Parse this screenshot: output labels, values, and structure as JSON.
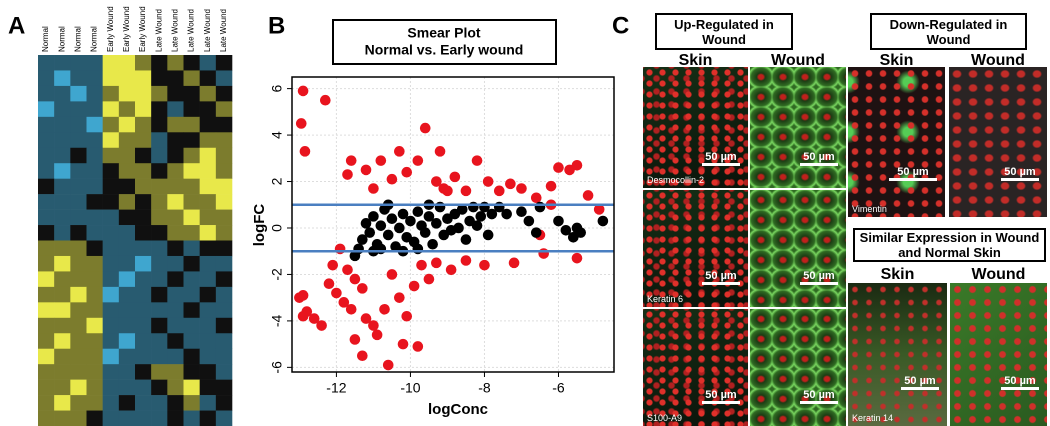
{
  "panel_labels": [
    "A",
    "B",
    "C"
  ],
  "chart_data": [
    {
      "type": "heatmap",
      "columns": [
        "Normal",
        "Normal",
        "Normal",
        "Normal",
        "Early Wound",
        "Early Wound",
        "Early Wound",
        "Late Wound",
        "Late Wound",
        "Late Wound",
        "Late Wound",
        "Late Wound"
      ],
      "colorlim": [
        -2,
        2
      ],
      "colors": [
        "#3fa6cf",
        "#101010",
        "#e8e84a"
      ],
      "matrix": [
        [
          -1,
          -1,
          -1,
          -1,
          2,
          2,
          1,
          0,
          1,
          0,
          -1,
          0
        ],
        [
          -1,
          -2,
          -1,
          -1,
          2,
          2,
          2,
          0,
          0,
          1,
          0,
          -1
        ],
        [
          -1,
          -1,
          -2,
          -1,
          1,
          2,
          2,
          1,
          0,
          0,
          1,
          0
        ],
        [
          -2,
          -1,
          -1,
          -1,
          2,
          1,
          2,
          0,
          -1,
          0,
          0,
          1
        ],
        [
          -1,
          -1,
          -1,
          -2,
          1,
          2,
          1,
          0,
          1,
          1,
          0,
          0
        ],
        [
          -1,
          -1,
          -1,
          -1,
          2,
          1,
          1,
          -1,
          0,
          0,
          1,
          1
        ],
        [
          -1,
          -1,
          0,
          -1,
          1,
          1,
          0,
          -1,
          0,
          1,
          2,
          1
        ],
        [
          -1,
          -2,
          -1,
          -1,
          0,
          1,
          1,
          0,
          1,
          2,
          2,
          1
        ],
        [
          0,
          -1,
          -1,
          -1,
          0,
          0,
          1,
          1,
          1,
          1,
          2,
          2
        ],
        [
          -1,
          -1,
          -1,
          0,
          0,
          1,
          0,
          1,
          2,
          1,
          1,
          2
        ],
        [
          -1,
          -1,
          -1,
          -1,
          -1,
          0,
          0,
          1,
          1,
          2,
          1,
          1
        ],
        [
          0,
          -1,
          0,
          -1,
          -1,
          -1,
          0,
          0,
          1,
          1,
          2,
          1
        ],
        [
          1,
          1,
          1,
          0,
          -1,
          -1,
          -1,
          -1,
          0,
          -1,
          0,
          0
        ],
        [
          1,
          2,
          1,
          1,
          -1,
          -1,
          -2,
          -1,
          -1,
          0,
          -1,
          -1
        ],
        [
          2,
          1,
          1,
          1,
          -1,
          -2,
          -1,
          -1,
          0,
          -1,
          -1,
          0
        ],
        [
          1,
          1,
          2,
          1,
          -2,
          -1,
          -1,
          0,
          -1,
          -1,
          0,
          -1
        ],
        [
          2,
          2,
          1,
          1,
          -1,
          -1,
          -1,
          -1,
          -1,
          0,
          -1,
          -1
        ],
        [
          1,
          1,
          1,
          2,
          -1,
          -1,
          -1,
          0,
          -1,
          -1,
          -1,
          0
        ],
        [
          1,
          2,
          1,
          1,
          -1,
          -2,
          -1,
          -1,
          0,
          -1,
          -1,
          -1
        ],
        [
          2,
          1,
          1,
          1,
          -2,
          -1,
          -1,
          -1,
          -1,
          0,
          -1,
          -1
        ],
        [
          1,
          1,
          1,
          1,
          -1,
          -1,
          0,
          1,
          1,
          0,
          0,
          -1
        ],
        [
          1,
          1,
          2,
          1,
          -1,
          -1,
          -1,
          0,
          1,
          2,
          0,
          0
        ],
        [
          1,
          2,
          1,
          1,
          -1,
          0,
          -1,
          -1,
          0,
          1,
          -1,
          0
        ],
        [
          1,
          1,
          1,
          0,
          -1,
          -1,
          -1,
          -1,
          0,
          -1,
          0,
          -1
        ]
      ]
    },
    {
      "type": "scatter",
      "title": "Smear Plot",
      "subtitle": "Normal vs. Early wound",
      "xlabel": "logConc",
      "ylabel": "logFC",
      "xlim": [
        -13.2,
        -4.5
      ],
      "ylim": [
        -6.2,
        6.5
      ],
      "xticks": [
        -12,
        -10,
        -8,
        -6
      ],
      "yticks": [
        -6,
        -4,
        -2,
        0,
        2,
        4,
        6
      ],
      "grid": true,
      "hlines": [
        1,
        -1
      ],
      "hline_color": "#4a7fc1",
      "series": [
        {
          "color": "#e8141e",
          "x": [
            -12.9,
            -12.3,
            -12.95,
            -12.85,
            -13,
            -12.9,
            -12.8,
            -12.9,
            -12.6,
            -12.4,
            -12.2,
            -12,
            -11.8,
            -11.6,
            -11.5,
            -11.7,
            -11.3,
            -11.2,
            -11,
            -10.9,
            -10.7,
            -10.5,
            -10.3,
            -10.1,
            -9.9,
            -9.7,
            -9.5,
            -9.3,
            -8.9,
            -8.5,
            -8,
            -7.2,
            -6.4,
            -5.5,
            -10.6,
            -10.2,
            -9.8,
            -11.3,
            -11.5,
            -11.6,
            -11.7,
            -11.2,
            -11,
            -10.8,
            -10.5,
            -10.3,
            -10.1,
            -9.8,
            -9.6,
            -9.3,
            -9.1,
            -8.8,
            -8.5,
            -8.2,
            -7.9,
            -7.6,
            -7.3,
            -7,
            -6.6,
            -6.2,
            -6,
            -5.7,
            -5.5,
            -5.2,
            -4.9,
            -6.5,
            -6.2,
            -9.2,
            -9,
            -11.9,
            -12.1
          ],
          "values": [
            5.9,
            5.5,
            4.5,
            3.3,
            -3,
            -2.9,
            -3.6,
            -3.8,
            -3.9,
            -4.2,
            -2.4,
            -2.8,
            -3.2,
            -3.5,
            -2.2,
            -1.8,
            -2.6,
            -3.9,
            -4.2,
            -4.6,
            -3.5,
            -2,
            -3,
            -3.8,
            -2.5,
            -1.6,
            -2.2,
            -1.5,
            -1.8,
            -1.4,
            -1.6,
            -1.5,
            -1.1,
            -1.3,
            -5.9,
            -5,
            -5.1,
            -5.5,
            -4.8,
            2.9,
            2.3,
            2.5,
            1.7,
            2.9,
            2.1,
            3.3,
            2.4,
            2.9,
            4.3,
            2,
            1.7,
            2.2,
            1.6,
            2.9,
            2,
            1.6,
            1.9,
            1.7,
            1.3,
            1,
            2.6,
            2.5,
            2.7,
            1.4,
            0.8,
            -0.3,
            1.8,
            3.3,
            1.6,
            -0.9,
            -1.6
          ]
        },
        {
          "color": "#000000",
          "x": [
            -11.4,
            -11.3,
            -11.2,
            -11.1,
            -11,
            -10.9,
            -10.8,
            -10.7,
            -10.6,
            -10.5,
            -10.4,
            -10.3,
            -10.2,
            -10.1,
            -10,
            -9.9,
            -9.8,
            -9.7,
            -9.6,
            -9.5,
            -9.4,
            -9.3,
            -9.2,
            -9.1,
            -9,
            -8.9,
            -8.8,
            -8.7,
            -8.6,
            -8.5,
            -8.4,
            -8.3,
            -8.2,
            -8.1,
            -8,
            -7.9,
            -7.8,
            -7.6,
            -7.4,
            -7,
            -6.8,
            -6.5,
            -6.6,
            -6,
            -5.8,
            -5.5,
            -5.4,
            -5.6,
            -4.8,
            -10.6,
            -11,
            -10.2,
            -9.5,
            -11.5,
            -10.8,
            -9.8
          ],
          "values": [
            -0.9,
            -0.5,
            0.2,
            -0.2,
            0.5,
            -0.7,
            0.1,
            0.8,
            -0.3,
            0.4,
            -0.8,
            0,
            0.6,
            -0.4,
            0.3,
            -0.6,
            0.7,
            0.1,
            -0.2,
            0.5,
            -0.7,
            0.2,
            0.9,
            -0.3,
            0.4,
            -0.1,
            0.6,
            0,
            0.8,
            -0.5,
            0.3,
            0.9,
            0.1,
            0.5,
            0.9,
            -0.3,
            0.6,
            0.9,
            0.6,
            0.7,
            0.3,
            0.9,
            -0.2,
            0.3,
            -0.1,
            0,
            -0.2,
            -0.4,
            0.3,
            1,
            -1,
            -1,
            1,
            -1.2,
            -0.9,
            -0.9
          ]
        }
      ]
    }
  ],
  "micrographs": {
    "scale_bar": "50 µm",
    "groups": [
      {
        "title": "Up-Regulated in Wound",
        "columns": [
          "Skin",
          "Wound"
        ],
        "markers": [
          "Desmocollin-2",
          "Keratin 6",
          "S100-A9"
        ]
      },
      {
        "title": "Down-Regulated in Wound",
        "columns": [
          "Skin",
          "Wound"
        ],
        "markers": [
          "Vimentin"
        ]
      },
      {
        "title": "Similar Expression in Wound and Normal Skin",
        "columns": [
          "Skin",
          "Wound"
        ],
        "markers": [
          "Keratin 14"
        ]
      }
    ]
  }
}
